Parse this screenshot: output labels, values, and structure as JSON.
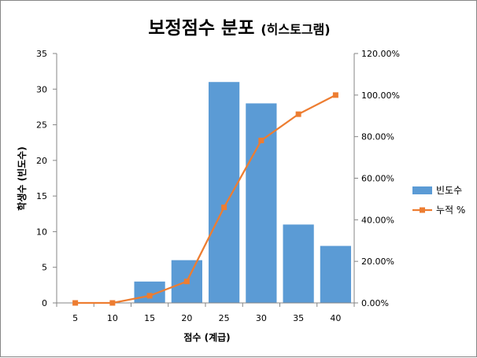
{
  "chart_data": {
    "type": "bar",
    "title": "보정점수 분포",
    "subtitle": "(히스토그램)",
    "xlabel": "점수 (계급)",
    "ylabel": "학생수 (빈도수)",
    "categories": [
      "5",
      "10",
      "15",
      "20",
      "25",
      "30",
      "35",
      "40"
    ],
    "series": [
      {
        "name": "빈도수",
        "type": "bar",
        "axis": "left",
        "color": "#5B9BD5",
        "values": [
          0,
          0,
          3,
          6,
          31,
          28,
          11,
          8
        ]
      },
      {
        "name": "누적 %",
        "type": "line",
        "axis": "right",
        "color": "#ED7D31",
        "marker": "square",
        "values": [
          0.0,
          0.0,
          3.45,
          10.34,
          45.98,
          78.16,
          90.8,
          100.0
        ]
      }
    ],
    "ylim": [
      0,
      35
    ],
    "y_ticks": [
      "0",
      "5",
      "10",
      "15",
      "20",
      "25",
      "30",
      "35"
    ],
    "y2lim": [
      0,
      120
    ],
    "y2_ticks": [
      "0.00%",
      "20.00%",
      "40.00%",
      "60.00%",
      "80.00%",
      "100.00%",
      "120.00%"
    ],
    "grid": false,
    "legend_position": "right"
  }
}
